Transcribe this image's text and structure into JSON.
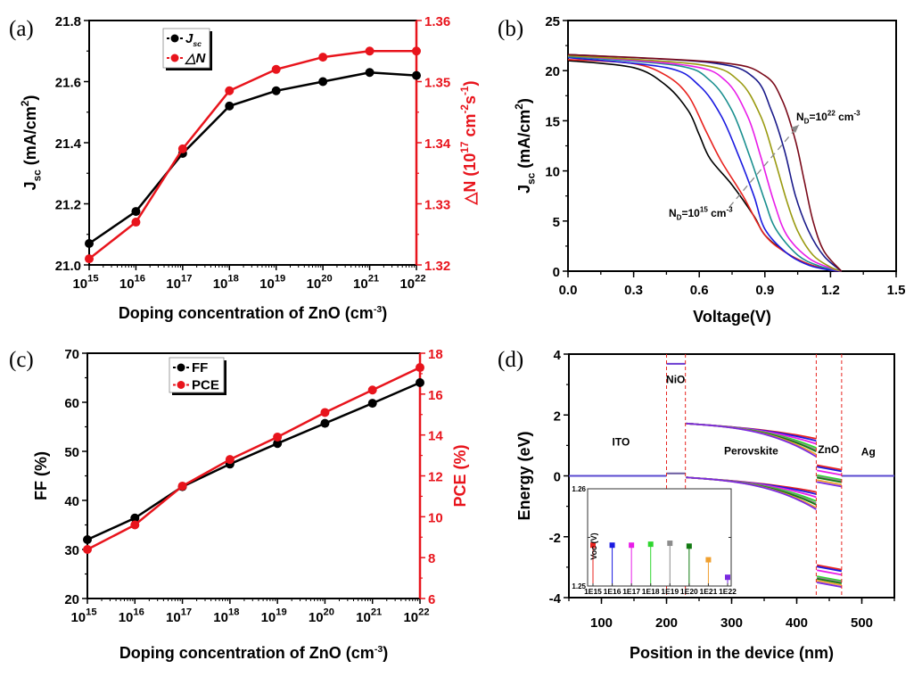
{
  "chart_data": [
    {
      "panel_label": "(a)",
      "type": "line",
      "x_scale": "log",
      "xlim": [
        1000000000000000.0,
        1e+22
      ],
      "x": [
        1000000000000000.0,
        1e+16,
        1e+17,
        1e+18,
        1e+19,
        1e+20,
        1e+21,
        1e+22
      ],
      "x_tick_labels": [
        "10^{15}",
        "10^{16}",
        "10^{17}",
        "10^{18}",
        "10^{19}",
        "10^{20}",
        "10^{21}",
        "10^{22}"
      ],
      "xlabel": "Doping concentration of ZnO (cm^{-3})",
      "y_left": {
        "label": "J_{sc} (mA/cm^{2})",
        "lim": [
          21.0,
          21.8
        ],
        "ticks": [
          21.0,
          21.2,
          21.4,
          21.6,
          21.8
        ],
        "tick_labels": [
          "21.0",
          "21.2",
          "21.4",
          "21.6",
          "21.8"
        ],
        "color": "#000000"
      },
      "y_right": {
        "label": "△N (10^{17} cm^{-2}s^{-1})",
        "lim": [
          1.32,
          1.36
        ],
        "ticks": [
          1.32,
          1.33,
          1.34,
          1.35,
          1.36
        ],
        "tick_labels": [
          "1.32",
          "1.33",
          "1.34",
          "1.35",
          "1.36"
        ],
        "color": "#e8141c"
      },
      "series": [
        {
          "name": "J_{sc}",
          "axis": "left",
          "color": "#000000",
          "values": [
            21.07,
            21.175,
            21.365,
            21.52,
            21.57,
            21.6,
            21.63,
            21.62
          ]
        },
        {
          "name": "△N",
          "axis": "right",
          "color": "#e8141c",
          "values": [
            1.321,
            1.327,
            1.339,
            1.3485,
            1.352,
            1.354,
            1.355,
            1.355
          ]
        }
      ],
      "legend": "top-left"
    },
    {
      "panel_label": "(b)",
      "type": "line",
      "xlim": [
        0,
        1.5
      ],
      "x_ticks": [
        0,
        0.3,
        0.6,
        0.9,
        1.2,
        1.5
      ],
      "x_tick_labels": [
        "0.0",
        "0.3",
        "0.6",
        "0.9",
        "1.2",
        "1.5"
      ],
      "xlabel": "Voltage(V)",
      "y_left": {
        "label": "J_{sc} (mA/cm^{2})",
        "lim": [
          0,
          25
        ],
        "ticks": [
          0,
          5,
          10,
          15,
          20,
          25
        ],
        "tick_labels": [
          "0",
          "5",
          "10",
          "15",
          "20",
          "25"
        ],
        "color": "#000000"
      },
      "series": [
        {
          "color": "#000000",
          "points": [
            [
              0,
              21.0
            ],
            [
              0.3,
              20.3
            ],
            [
              0.45,
              18.5
            ],
            [
              0.55,
              16
            ],
            [
              0.6,
              13.6
            ],
            [
              0.65,
              11.2
            ],
            [
              0.75,
              8.6
            ],
            [
              0.85,
              5.5
            ],
            [
              0.9,
              3.6
            ],
            [
              1.0,
              1.8
            ],
            [
              1.1,
              0.7
            ],
            [
              1.2,
              0.1
            ],
            [
              1.25,
              0
            ]
          ]
        },
        {
          "color": "#e8231f",
          "points": [
            [
              0,
              21.1
            ],
            [
              0.3,
              20.7
            ],
            [
              0.45,
              19.5
            ],
            [
              0.55,
              17.5
            ],
            [
              0.63,
              14
            ],
            [
              0.7,
              11
            ],
            [
              0.8,
              7.5
            ],
            [
              0.9,
              3.6
            ],
            [
              1.0,
              1.8
            ],
            [
              1.1,
              0.7
            ],
            [
              1.2,
              0.1
            ],
            [
              1.25,
              0
            ]
          ]
        },
        {
          "color": "#1a1ae0",
          "points": [
            [
              0,
              21.3
            ],
            [
              0.45,
              20.3
            ],
            [
              0.6,
              18.5
            ],
            [
              0.7,
              15.5
            ],
            [
              0.78,
              11.5
            ],
            [
              0.85,
              7.5
            ],
            [
              0.9,
              4.2
            ],
            [
              1.0,
              1.8
            ],
            [
              1.1,
              0.6
            ],
            [
              1.2,
              0.1
            ],
            [
              1.25,
              0
            ]
          ]
        },
        {
          "color": "#1a8f8f",
          "points": [
            [
              0,
              21.4
            ],
            [
              0.5,
              20.5
            ],
            [
              0.65,
              19
            ],
            [
              0.75,
              16
            ],
            [
              0.83,
              11.5
            ],
            [
              0.9,
              7
            ],
            [
              0.95,
              4.2
            ],
            [
              1.05,
              1.6
            ],
            [
              1.15,
              0.5
            ],
            [
              1.25,
              0
            ]
          ]
        },
        {
          "color": "#e81ce8",
          "points": [
            [
              0,
              21.5
            ],
            [
              0.55,
              20.5
            ],
            [
              0.72,
              19
            ],
            [
              0.82,
              15.5
            ],
            [
              0.88,
              11.5
            ],
            [
              0.94,
              7
            ],
            [
              1.0,
              3.6
            ],
            [
              1.1,
              1.3
            ],
            [
              1.2,
              0.3
            ],
            [
              1.25,
              0
            ]
          ]
        },
        {
          "color": "#9a9a10",
          "points": [
            [
              0,
              21.5
            ],
            [
              0.6,
              20.6
            ],
            [
              0.78,
              19
            ],
            [
              0.88,
              15.5
            ],
            [
              0.94,
              11.5
            ],
            [
              1.0,
              7
            ],
            [
              1.05,
              4
            ],
            [
              1.12,
              1.6
            ],
            [
              1.2,
              0.4
            ],
            [
              1.25,
              0
            ]
          ]
        },
        {
          "color": "#1a1a8a",
          "points": [
            [
              0,
              21.6
            ],
            [
              0.65,
              20.8
            ],
            [
              0.85,
              19.3
            ],
            [
              0.93,
              16
            ],
            [
              0.99,
              12
            ],
            [
              1.04,
              7.5
            ],
            [
              1.1,
              4
            ],
            [
              1.17,
              1.5
            ],
            [
              1.25,
              0
            ]
          ]
        },
        {
          "color": "#7a0a1a",
          "points": [
            [
              0,
              21.6
            ],
            [
              0.7,
              20.8
            ],
            [
              0.9,
              19.5
            ],
            [
              0.98,
              17
            ],
            [
              1.04,
              13
            ],
            [
              1.08,
              9
            ],
            [
              1.12,
              5
            ],
            [
              1.17,
              2
            ],
            [
              1.25,
              0
            ]
          ]
        }
      ],
      "annotations": [
        "N_{D}=10^{22} cm^{-3}",
        "N_{D}=10^{15} cm^{-3}"
      ]
    },
    {
      "panel_label": "(c)",
      "type": "line",
      "x_scale": "log",
      "xlim": [
        1000000000000000.0,
        1e+22
      ],
      "x": [
        1000000000000000.0,
        1e+16,
        1e+17,
        1e+18,
        1e+19,
        1e+20,
        1e+21,
        1e+22
      ],
      "x_tick_labels": [
        "10^{15}",
        "10^{16}",
        "10^{17}",
        "10^{18}",
        "10^{19}",
        "10^{20}",
        "10^{21}",
        "10^{22}"
      ],
      "xlabel": "Doping concentration of ZnO (cm^{-3})",
      "y_left": {
        "label": "FF (%)",
        "lim": [
          20,
          70
        ],
        "ticks": [
          20,
          30,
          40,
          50,
          60,
          70
        ],
        "tick_labels": [
          "20",
          "30",
          "40",
          "50",
          "60",
          "70"
        ],
        "color": "#000000"
      },
      "y_right": {
        "label": "PCE (%)",
        "lim": [
          6,
          18
        ],
        "ticks": [
          6,
          8,
          10,
          12,
          14,
          16,
          18
        ],
        "tick_labels": [
          "6",
          "8",
          "10",
          "12",
          "14",
          "16",
          "18"
        ],
        "color": "#e8141c"
      },
      "series": [
        {
          "name": "FF",
          "axis": "left",
          "color": "#000000",
          "values": [
            32.0,
            36.4,
            42.8,
            47.4,
            51.6,
            55.7,
            59.8,
            64.0
          ]
        },
        {
          "name": "PCE",
          "axis": "right",
          "color": "#e8141c",
          "values": [
            8.4,
            9.6,
            11.5,
            12.8,
            13.9,
            15.1,
            16.2,
            17.3
          ]
        }
      ],
      "legend": "top-left"
    },
    {
      "panel_label": "(d)",
      "type": "line",
      "xlim": [
        50,
        550
      ],
      "x_ticks": [
        100,
        200,
        300,
        400,
        500
      ],
      "x_tick_labels": [
        "100",
        "200",
        "300",
        "400",
        "500"
      ],
      "xlabel": "Position in the device (nm)",
      "y_left": {
        "label": "Energy (eV)",
        "lim": [
          -4,
          4
        ],
        "ticks": [
          -4,
          -2,
          0,
          2,
          4
        ],
        "tick_labels": [
          "-4",
          "-2",
          "0",
          "2",
          "4"
        ],
        "color": "#000000"
      },
      "interfaces_nm": [
        200,
        229,
        430,
        469
      ],
      "layer_labels": [
        "ITO",
        "NiO",
        "Perovskite",
        "ZnO",
        "Ag"
      ],
      "nio_bands_eV": {
        "cb": 3.68,
        "vb": 0.08
      },
      "perovskite_start_eV": {
        "cb": 1.72,
        "vb": -0.05
      },
      "band_series": [
        {
          "color": "#e8231f",
          "pero_cb_end": 1.22,
          "pero_vb_end": -0.53,
          "zno_cb": 0.35,
          "zno_vb": -2.93
        },
        {
          "color": "#1a1ae0",
          "pero_cb_end": 1.15,
          "pero_vb_end": -0.6,
          "zno_cb": 0.3,
          "zno_vb": -2.98
        },
        {
          "color": "#e81ce8",
          "pero_cb_end": 1.05,
          "pero_vb_end": -0.7,
          "zno_cb": 0.18,
          "zno_vb": -3.1
        },
        {
          "color": "#2ed62e",
          "pero_cb_end": 0.92,
          "pero_vb_end": -0.83,
          "zno_cb": 0.02,
          "zno_vb": -3.3
        },
        {
          "color": "#8c8c8c",
          "pero_cb_end": 0.85,
          "pero_vb_end": -0.9,
          "zno_cb": -0.02,
          "zno_vb": -3.34
        },
        {
          "color": "#127a12",
          "pero_cb_end": 0.8,
          "pero_vb_end": -0.95,
          "zno_cb": -0.06,
          "zno_vb": -3.38
        },
        {
          "color": "#f0a030",
          "pero_cb_end": 0.7,
          "pero_vb_end": -1.05,
          "zno_cb": -0.14,
          "zno_vb": -3.44
        },
        {
          "color": "#7a2ae0",
          "pero_cb_end": 0.63,
          "pero_vb_end": -1.1,
          "zno_cb": -0.2,
          "zno_vb": -3.5
        }
      ],
      "inset": {
        "type": "bar",
        "ylabel": "Voc (V)",
        "ylim": [
          1.25,
          1.26
        ],
        "tick_labels": [
          "1.25",
          "1.26"
        ],
        "categories": [
          "1E15",
          "1E16",
          "1E17",
          "1E18",
          "1E19",
          "1E20",
          "1E21",
          "1E22"
        ],
        "values": [
          1.2542,
          1.2542,
          1.2542,
          1.2543,
          1.2544,
          1.2541,
          1.2527,
          1.2509
        ],
        "colors": [
          "#e8231f",
          "#1a1ae0",
          "#e81ce8",
          "#2ed62e",
          "#8c8c8c",
          "#127a12",
          "#f0a030",
          "#7a2ae0"
        ]
      }
    }
  ]
}
